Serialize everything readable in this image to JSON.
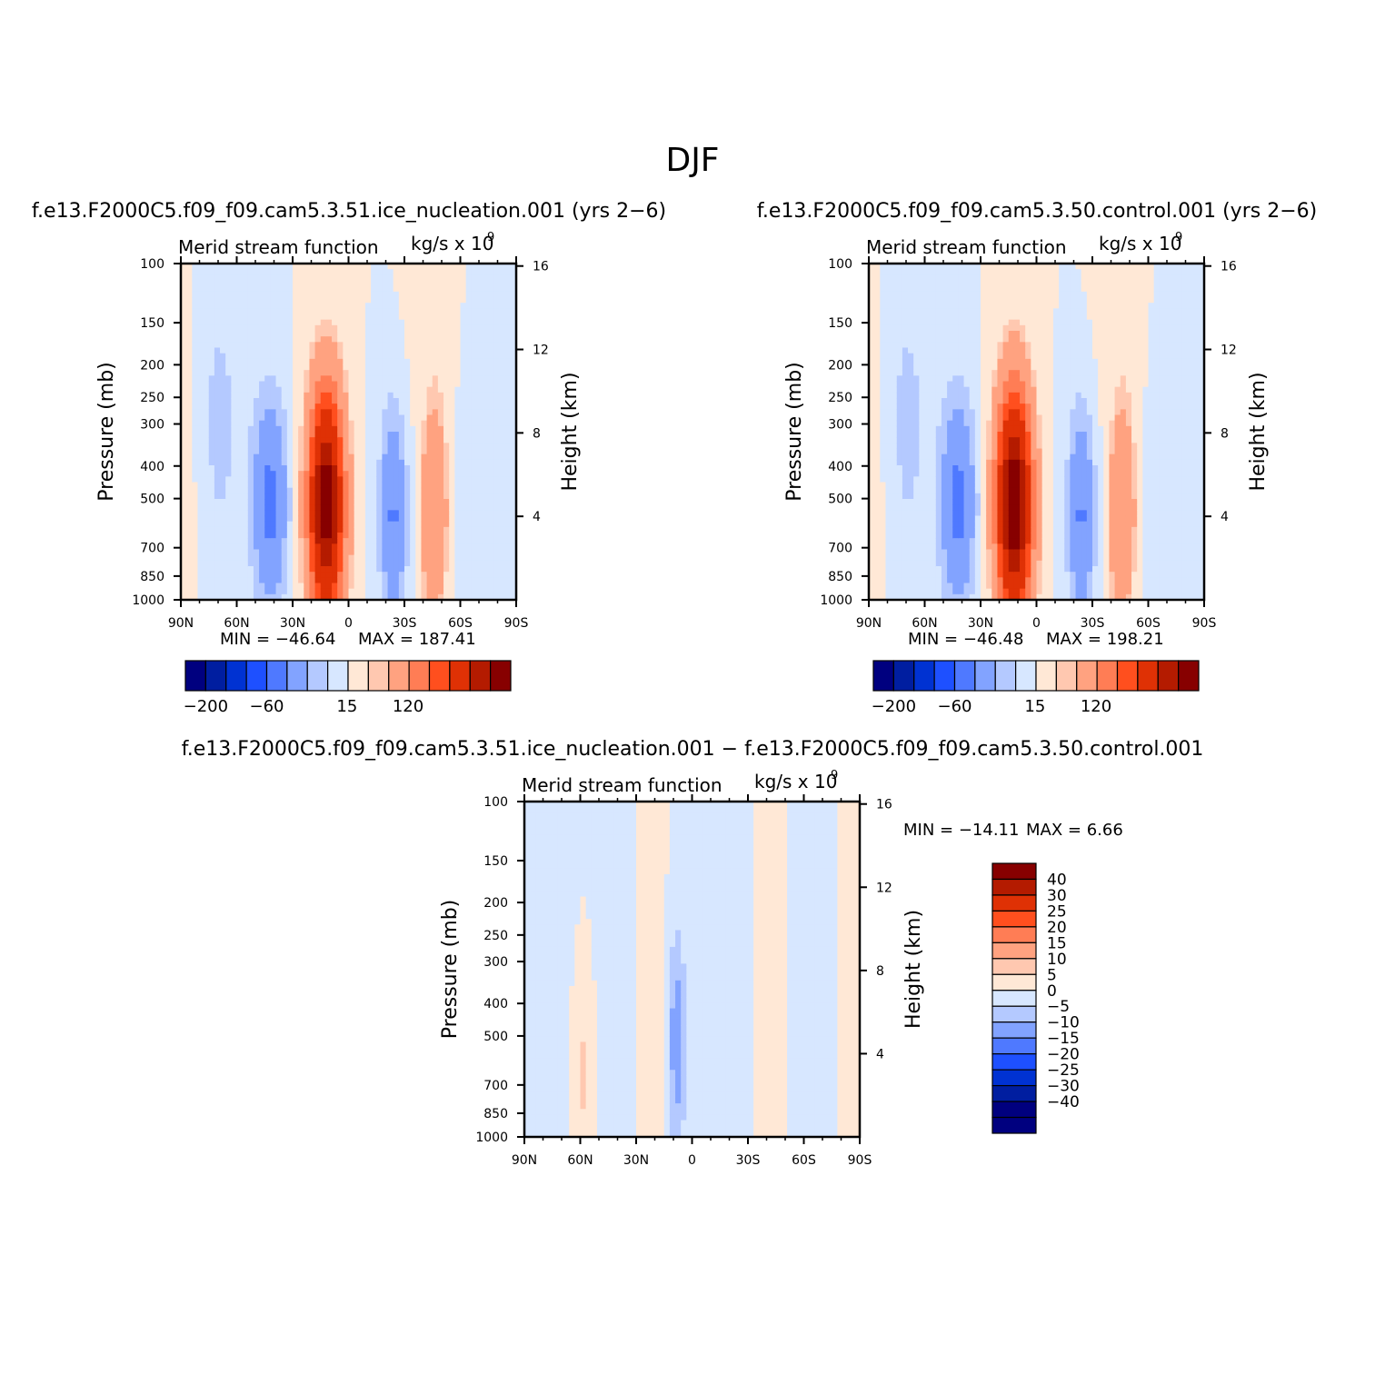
{
  "figure": {
    "title": "DJF"
  },
  "colors": {
    "sym16": [
      "#00007f",
      "#001ea0",
      "#0032d2",
      "#1e50ff",
      "#4f79ff",
      "#82a3ff",
      "#b4c9ff",
      "#d7e7ff",
      "#ffe8d6",
      "#ffc8b0",
      "#ffa280",
      "#ff7d55",
      "#ff4f1e",
      "#df3105",
      "#b41b00",
      "#870000"
    ],
    "diff16": [
      "#00007f",
      "#001ea0",
      "#0032d2",
      "#1e50ff",
      "#4f79ff",
      "#82a3ff",
      "#b4c9ff",
      "#d7e7ff",
      "#ffe8d6",
      "#ffc8b0",
      "#ffa280",
      "#ff7d55",
      "#ff4f1e",
      "#df3105",
      "#b41b00",
      "#870000"
    ]
  },
  "chart_data": [
    {
      "type": "heatmap",
      "panel": "left",
      "title": "f.e13.F2000C5.f09_f09.cam5.3.51.ice_nucleation.001  (yrs  2−6)",
      "left_string": "Merid stream function",
      "units_base": "kg/s  x  10",
      "units_exp": "9",
      "xlabel": "",
      "ylabel": "Pressure  (mb)",
      "ylabel_right": "Height  (km)",
      "x_ticks": [
        "90N",
        "60N",
        "30N",
        "0",
        "30S",
        "60S",
        "90S"
      ],
      "x_tick_values": [
        90,
        60,
        30,
        0,
        -30,
        -60,
        -90
      ],
      "y_ticks": [
        "100",
        "150",
        "200",
        "250",
        "300",
        "400",
        "500",
        "700",
        "850",
        "1000"
      ],
      "y_tick_values": [
        100,
        150,
        200,
        250,
        300,
        400,
        500,
        700,
        850,
        1000
      ],
      "y_right_ticks": [
        "16",
        "12",
        "8",
        "4"
      ],
      "y_right_tick_values": [
        16,
        12,
        8,
        4
      ],
      "xlim": [
        90,
        -90
      ],
      "ylim": [
        1000,
        100
      ],
      "yscale": "log",
      "min_label": "MIN  =  −46.64",
      "max_label": "MAX  =  187.41",
      "colorbar_labels": [
        "−200",
        "−60",
        "15",
        "120"
      ],
      "features": [
        {
          "center_lat": 12,
          "top_p": 290,
          "value": 187.41
        },
        {
          "center_lat": 42,
          "top_p": 200,
          "value": -46.64
        },
        {
          "center_lat": -24,
          "top_p": 190,
          "value": -40
        },
        {
          "center_lat": -46,
          "top_p": 200,
          "value": 40
        }
      ]
    },
    {
      "type": "heatmap",
      "panel": "right",
      "title": "f.e13.F2000C5.f09_f09.cam5.3.50.control.001  (yrs  2−6)",
      "left_string": "Merid stream function",
      "units_base": "kg/s  x  10",
      "units_exp": "9",
      "xlabel": "",
      "ylabel": "Pressure  (mb)",
      "ylabel_right": "Height  (km)",
      "x_ticks": [
        "90N",
        "60N",
        "30N",
        "0",
        "30S",
        "60S",
        "90S"
      ],
      "x_tick_values": [
        90,
        60,
        30,
        0,
        -30,
        -60,
        -90
      ],
      "y_ticks": [
        "100",
        "150",
        "200",
        "250",
        "300",
        "400",
        "500",
        "700",
        "850",
        "1000"
      ],
      "y_tick_values": [
        100,
        150,
        200,
        250,
        300,
        400,
        500,
        700,
        850,
        1000
      ],
      "y_right_ticks": [
        "16",
        "12",
        "8",
        "4"
      ],
      "y_right_tick_values": [
        16,
        12,
        8,
        4
      ],
      "xlim": [
        90,
        -90
      ],
      "ylim": [
        1000,
        100
      ],
      "yscale": "log",
      "min_label": "MIN  =  −46.48",
      "max_label": "MAX  =  198.21",
      "colorbar_labels": [
        "−200",
        "−60",
        "15",
        "120"
      ],
      "features": [
        {
          "center_lat": 12,
          "top_p": 290,
          "value": 198.21
        },
        {
          "center_lat": 42,
          "top_p": 200,
          "value": -46.48
        },
        {
          "center_lat": -24,
          "top_p": 190,
          "value": -40
        },
        {
          "center_lat": -46,
          "top_p": 200,
          "value": 40
        }
      ]
    },
    {
      "type": "heatmap",
      "panel": "difference",
      "title": "f.e13.F2000C5.f09_f09.cam5.3.51.ice_nucleation.001  −  f.e13.F2000C5.f09_f09.cam5.3.50.control.001",
      "left_string": "Merid stream function",
      "units_base": "kg/s  x  10",
      "units_exp": "9",
      "xlabel": "",
      "ylabel": "Pressure  (mb)",
      "ylabel_right": "Height  (km)",
      "x_ticks": [
        "90N",
        "60N",
        "30N",
        "0",
        "30S",
        "60S",
        "90S"
      ],
      "x_tick_values": [
        90,
        60,
        30,
        0,
        -30,
        -60,
        -90
      ],
      "y_ticks": [
        "100",
        "150",
        "200",
        "250",
        "300",
        "400",
        "500",
        "700",
        "850",
        "1000"
      ],
      "y_tick_values": [
        100,
        150,
        200,
        250,
        300,
        400,
        500,
        700,
        850,
        1000
      ],
      "y_right_ticks": [
        "16",
        "12",
        "8",
        "4"
      ],
      "y_right_tick_values": [
        16,
        12,
        8,
        4
      ],
      "xlim": [
        90,
        -90
      ],
      "ylim": [
        1000,
        100
      ],
      "yscale": "log",
      "min_label": "MIN  =  −14.11",
      "max_label": "MAX  =     6.66",
      "colorbar_labels": [
        "40",
        "30",
        "25",
        "20",
        "15",
        "10",
        "5",
        "0",
        "−5",
        "−10",
        "−15",
        "−20",
        "−25",
        "−30",
        "−40"
      ],
      "features": [
        {
          "center_lat": 8,
          "top_p": 220,
          "value": -14.11
        },
        {
          "center_lat": 58,
          "top_p": 380,
          "value": 6.66
        }
      ]
    }
  ]
}
